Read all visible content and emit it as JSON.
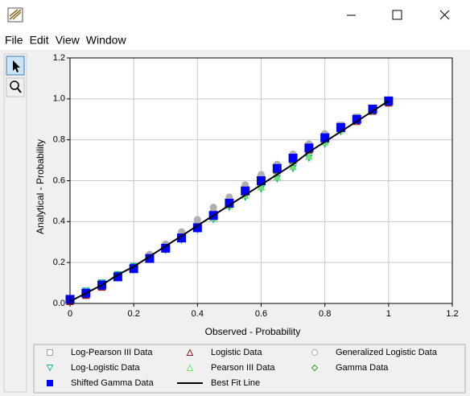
{
  "menu": [
    "File",
    "Edit",
    "View",
    "Window"
  ],
  "chart_data": {
    "type": "scatter",
    "xlabel": "Observed - Probability",
    "ylabel": "Analytical - Probability",
    "xlim": [
      0,
      1.2
    ],
    "xticks": [
      0,
      0.2,
      0.4,
      0.6,
      0.8,
      1,
      1.2
    ],
    "ylim": [
      0,
      1.2
    ],
    "yticks": [
      {
        "value": 0,
        "label": "0.0"
      },
      0.2,
      0.4,
      0.6,
      0.8,
      {
        "value": 1,
        "label": "1.0"
      },
      1.2
    ],
    "grid": true,
    "x": [
      0,
      0.05,
      0.1,
      0.15,
      0.2,
      0.25,
      0.3,
      0.35,
      0.4,
      0.45,
      0.5,
      0.55,
      0.6,
      0.65,
      0.7,
      0.75,
      0.8,
      0.85,
      0.9,
      0.95,
      1
    ],
    "series": [
      {
        "name": "Log-Pearson III Data",
        "color": "#a0a0a0",
        "marker": "square",
        "values": [
          0.02,
          0.05,
          0.09,
          0.13,
          0.18,
          0.23,
          0.28,
          0.33,
          0.38,
          0.44,
          0.5,
          0.56,
          0.61,
          0.67,
          0.72,
          0.77,
          0.82,
          0.87,
          0.91,
          0.95,
          0.99
        ]
      },
      {
        "name": "Logistic Data",
        "color": "#8b1a1a",
        "marker": "triangle",
        "values": [
          0.01,
          0.04,
          0.08,
          0.13,
          0.17,
          0.22,
          0.27,
          0.32,
          0.37,
          0.43,
          0.49,
          0.55,
          0.6,
          0.65,
          0.7,
          0.75,
          0.8,
          0.85,
          0.89,
          0.94,
          0.98
        ]
      },
      {
        "name": "Generalized Logistic Data",
        "color": "#b0b0b0",
        "marker": "circle",
        "values": [
          0.02,
          0.05,
          0.09,
          0.14,
          0.18,
          0.24,
          0.29,
          0.35,
          0.41,
          0.47,
          0.52,
          0.58,
          0.63,
          0.68,
          0.73,
          0.78,
          0.83,
          0.87,
          0.91,
          0.95,
          0.99
        ]
      },
      {
        "name": "Log-Logistic Data",
        "color": "#1ab0b0",
        "marker": "triangle-down",
        "values": [
          0.02,
          0.06,
          0.1,
          0.14,
          0.18,
          0.22,
          0.26,
          0.31,
          0.36,
          0.41,
          0.47,
          0.52,
          0.56,
          0.61,
          0.66,
          0.71,
          0.78,
          0.84,
          0.89,
          0.94,
          0.99
        ]
      },
      {
        "name": "Pearson III Data",
        "color": "#70e070",
        "marker": "triangle",
        "values": [
          0.02,
          0.06,
          0.1,
          0.14,
          0.18,
          0.22,
          0.27,
          0.32,
          0.37,
          0.42,
          0.48,
          0.53,
          0.57,
          0.62,
          0.67,
          0.72,
          0.79,
          0.85,
          0.9,
          0.95,
          0.99
        ]
      },
      {
        "name": "Gamma Data",
        "color": "#2ca02c",
        "marker": "diamond",
        "values": [
          0.02,
          0.05,
          0.09,
          0.14,
          0.18,
          0.22,
          0.27,
          0.32,
          0.37,
          0.43,
          0.48,
          0.54,
          0.59,
          0.64,
          0.69,
          0.75,
          0.8,
          0.85,
          0.9,
          0.95,
          0.99
        ]
      },
      {
        "name": "Shifted Gamma Data",
        "color": "#0000ff",
        "marker": "square-filled",
        "values": [
          0.02,
          0.05,
          0.09,
          0.13,
          0.17,
          0.22,
          0.27,
          0.32,
          0.37,
          0.43,
          0.49,
          0.55,
          0.6,
          0.66,
          0.71,
          0.76,
          0.81,
          0.86,
          0.9,
          0.95,
          0.99
        ]
      },
      {
        "name": "Best Fit Line",
        "color": "#000000",
        "marker": "line",
        "values": [
          0.01,
          0.05,
          0.09,
          0.14,
          0.18,
          0.23,
          0.28,
          0.33,
          0.38,
          0.43,
          0.48,
          0.53,
          0.58,
          0.63,
          0.68,
          0.74,
          0.79,
          0.84,
          0.89,
          0.94,
          0.99
        ]
      }
    ]
  }
}
